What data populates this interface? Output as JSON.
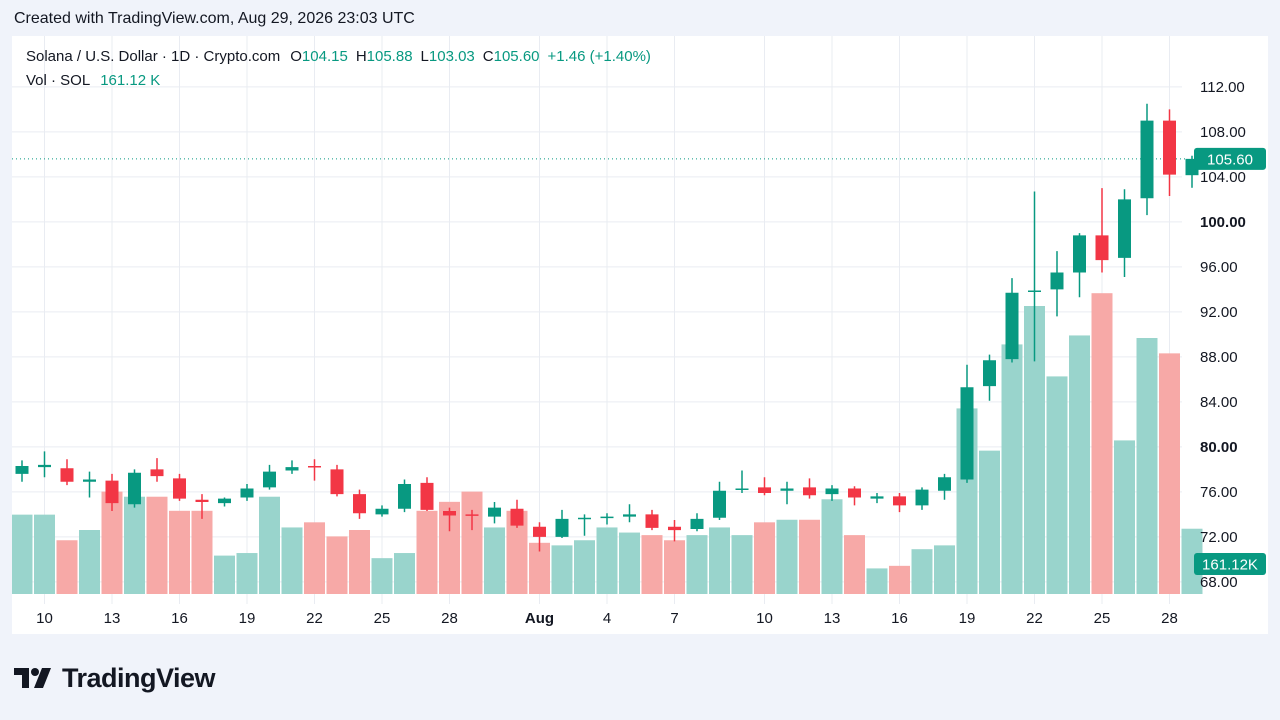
{
  "header": {
    "title": "Created with TradingView.com, Aug 29, 2026 23:03 UTC"
  },
  "legend": {
    "symbol": "Solana / U.S. Dollar · 1D · Crypto.com",
    "o_label": "O",
    "o_value": "104.15",
    "h_label": "H",
    "h_value": "105.88",
    "l_label": "L",
    "l_value": "103.03",
    "c_label": "C",
    "c_value": "105.60",
    "change": "+1.46 (+1.40%)",
    "vol_label": "Vol · SOL",
    "vol_value": "161.12 K"
  },
  "footer": {
    "brand": "TradingView"
  },
  "colors": {
    "up": "#089981",
    "down": "#f23645",
    "up_vol": "#99d4cc",
    "down_vol": "#f7a9a7",
    "grid": "#e9ecf2"
  },
  "chart_data": {
    "type": "candlestick",
    "x_tick_labels": [
      "10",
      "13",
      "16",
      "19",
      "22",
      "25",
      "28",
      "Aug",
      "4",
      "7",
      "10",
      "13",
      "16",
      "19",
      "22",
      "25",
      "28"
    ],
    "y_tick_labels": [
      "68.00",
      "72.00",
      "76.00",
      "80.00",
      "84.00",
      "88.00",
      "92.00",
      "96.00",
      "100.00",
      "104.00",
      "108.00",
      "112.00"
    ],
    "ylim": [
      66.5,
      113.5
    ],
    "last_price_label": "105.60",
    "last_volume_label": "161.12K",
    "candles": [
      {
        "date": "Jul 9",
        "o": 77.6,
        "h": 78.8,
        "l": 76.9,
        "c": 78.3
      },
      {
        "date": "Jul 10",
        "o": 78.2,
        "h": 79.6,
        "l": 77.3,
        "c": 78.4
      },
      {
        "date": "Jul 11",
        "o": 78.1,
        "h": 78.9,
        "l": 76.6,
        "c": 76.9
      },
      {
        "date": "Jul 12",
        "o": 76.9,
        "h": 77.8,
        "l": 75.5,
        "c": 77.1
      },
      {
        "date": "Jul 13",
        "o": 77.0,
        "h": 77.6,
        "l": 74.3,
        "c": 75.0
      },
      {
        "date": "Jul 14",
        "o": 74.9,
        "h": 78.0,
        "l": 74.6,
        "c": 77.7
      },
      {
        "date": "Jul 15",
        "o": 78.0,
        "h": 79.0,
        "l": 76.9,
        "c": 77.4
      },
      {
        "date": "Jul 16",
        "o": 77.2,
        "h": 77.6,
        "l": 75.2,
        "c": 75.4
      },
      {
        "date": "Jul 17",
        "o": 75.3,
        "h": 75.8,
        "l": 73.6,
        "c": 75.1
      },
      {
        "date": "Jul 18",
        "o": 75.0,
        "h": 75.5,
        "l": 74.7,
        "c": 75.4
      },
      {
        "date": "Jul 19",
        "o": 75.5,
        "h": 76.7,
        "l": 75.2,
        "c": 76.3
      },
      {
        "date": "Jul 20",
        "o": 76.4,
        "h": 78.4,
        "l": 76.2,
        "c": 77.8
      },
      {
        "date": "Jul 21",
        "o": 77.9,
        "h": 78.8,
        "l": 77.6,
        "c": 78.2
      },
      {
        "date": "Jul 22",
        "o": 78.3,
        "h": 78.9,
        "l": 77.0,
        "c": 78.2
      },
      {
        "date": "Jul 23",
        "o": 78.0,
        "h": 78.4,
        "l": 75.6,
        "c": 75.8
      },
      {
        "date": "Jul 24",
        "o": 75.8,
        "h": 76.2,
        "l": 73.6,
        "c": 74.1
      },
      {
        "date": "Jul 25",
        "o": 74.0,
        "h": 74.8,
        "l": 73.8,
        "c": 74.5
      },
      {
        "date": "Jul 26",
        "o": 74.5,
        "h": 77.1,
        "l": 74.2,
        "c": 76.7
      },
      {
        "date": "Jul 27",
        "o": 76.8,
        "h": 77.3,
        "l": 74.3,
        "c": 74.4
      },
      {
        "date": "Jul 28",
        "o": 74.3,
        "h": 74.6,
        "l": 72.5,
        "c": 73.9
      },
      {
        "date": "Jul 29",
        "o": 74.0,
        "h": 74.4,
        "l": 72.6,
        "c": 73.9
      },
      {
        "date": "Jul 30",
        "o": 73.8,
        "h": 75.1,
        "l": 73.2,
        "c": 74.6
      },
      {
        "date": "Jul 31",
        "o": 74.5,
        "h": 75.3,
        "l": 72.8,
        "c": 73.0
      },
      {
        "date": "Aug 1",
        "o": 72.9,
        "h": 73.3,
        "l": 70.7,
        "c": 72.0
      },
      {
        "date": "Aug 2",
        "o": 72.0,
        "h": 74.4,
        "l": 71.9,
        "c": 73.6
      },
      {
        "date": "Aug 3",
        "o": 73.6,
        "h": 74.0,
        "l": 72.1,
        "c": 73.7
      },
      {
        "date": "Aug 4",
        "o": 73.7,
        "h": 74.1,
        "l": 73.1,
        "c": 73.8
      },
      {
        "date": "Aug 5",
        "o": 73.8,
        "h": 74.9,
        "l": 73.3,
        "c": 74.0
      },
      {
        "date": "Aug 6",
        "o": 74.0,
        "h": 74.4,
        "l": 72.6,
        "c": 72.8
      },
      {
        "date": "Aug 7",
        "o": 72.9,
        "h": 73.5,
        "l": 71.6,
        "c": 72.6
      },
      {
        "date": "Aug 8",
        "o": 72.7,
        "h": 74.1,
        "l": 72.5,
        "c": 73.6
      },
      {
        "date": "Aug 9",
        "o": 73.7,
        "h": 76.9,
        "l": 73.5,
        "c": 76.1
      },
      {
        "date": "Aug 10",
        "o": 76.2,
        "h": 77.9,
        "l": 75.9,
        "c": 76.3
      },
      {
        "date": "Aug 11",
        "o": 76.4,
        "h": 77.3,
        "l": 75.7,
        "c": 75.9
      },
      {
        "date": "Aug 12",
        "o": 76.1,
        "h": 76.9,
        "l": 74.9,
        "c": 76.3
      },
      {
        "date": "Aug 13",
        "o": 76.4,
        "h": 77.2,
        "l": 75.4,
        "c": 75.7
      },
      {
        "date": "Aug 14",
        "o": 75.8,
        "h": 76.6,
        "l": 75.2,
        "c": 76.3
      },
      {
        "date": "Aug 15",
        "o": 76.3,
        "h": 76.5,
        "l": 74.8,
        "c": 75.5
      },
      {
        "date": "Aug 16",
        "o": 75.4,
        "h": 75.9,
        "l": 75.0,
        "c": 75.6
      },
      {
        "date": "Aug 17",
        "o": 75.6,
        "h": 75.9,
        "l": 74.2,
        "c": 74.8
      },
      {
        "date": "Aug 18",
        "o": 74.8,
        "h": 76.4,
        "l": 74.4,
        "c": 76.2
      },
      {
        "date": "Aug 19",
        "o": 76.1,
        "h": 77.6,
        "l": 75.3,
        "c": 77.3
      },
      {
        "date": "Aug 20",
        "o": 77.1,
        "h": 87.3,
        "l": 76.8,
        "c": 85.3
      },
      {
        "date": "Aug 21",
        "o": 85.4,
        "h": 88.2,
        "l": 84.1,
        "c": 87.7
      },
      {
        "date": "Aug 22",
        "o": 87.8,
        "h": 95.0,
        "l": 87.5,
        "c": 93.7
      },
      {
        "date": "Aug 23",
        "o": 93.8,
        "h": 102.7,
        "l": 87.6,
        "c": 93.9
      },
      {
        "date": "Aug 24",
        "o": 94.0,
        "h": 97.4,
        "l": 91.6,
        "c": 95.5
      },
      {
        "date": "Aug 25",
        "o": 95.5,
        "h": 99.0,
        "l": 93.3,
        "c": 98.8
      },
      {
        "date": "Aug 26",
        "o": 98.8,
        "h": 103.0,
        "l": 95.5,
        "c": 96.6
      },
      {
        "date": "Aug 27",
        "o": 96.8,
        "h": 102.9,
        "l": 95.1,
        "c": 102.0
      },
      {
        "date": "Aug 28",
        "o": 102.1,
        "h": 110.5,
        "l": 100.6,
        "c": 109.0
      },
      {
        "date": "Aug 29",
        "o": 109.0,
        "h": 110.0,
        "l": 102.3,
        "c": 104.2
      },
      {
        "date": "Aug 30",
        "o": 104.15,
        "h": 105.88,
        "l": 103.03,
        "c": 105.6
      }
    ],
    "volume_scale_max": 250,
    "volumes": [
      62,
      62,
      42,
      50,
      80,
      76,
      76,
      65,
      65,
      30,
      32,
      76,
      52,
      56,
      45,
      50,
      28,
      32,
      65,
      72,
      80,
      52,
      65,
      40,
      38,
      42,
      52,
      48,
      46,
      42,
      46,
      52,
      46,
      56,
      58,
      58,
      74,
      46,
      20,
      22,
      35,
      38,
      145,
      112,
      195,
      225,
      170,
      202,
      235,
      120,
      200,
      188,
      51
    ]
  }
}
